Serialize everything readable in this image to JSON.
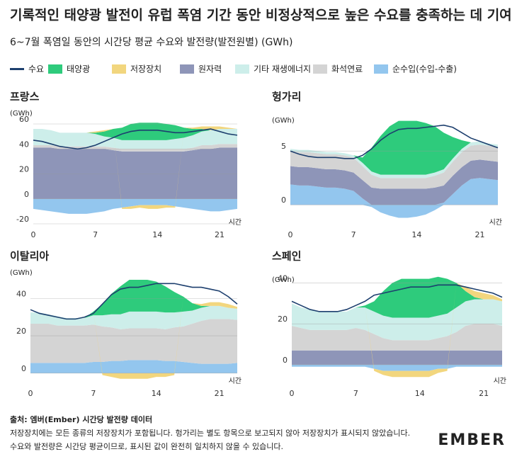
{
  "title": "기록적인 태양광 발전이 유럽 폭염 기간 동안 비정상적으로 높은 수요를 충족하는 데 기여",
  "subtitle": "6~7월 폭염일 동안의 시간당 평균 수요와 발전량(발전원별) (GWh)",
  "footer": {
    "source": "출처: 엠버(Ember) 시간당 발전량 데이터",
    "notes": [
      "저장장치에는 모든 종류의 저장장치가 포함됩니다. 헝가리는 별도 항목으로 보고되지 않아 저장장치가 표시되지 않았습니다.",
      "수요와 발전량은 시간당 평균이므로, 표시된 값이 완전히 일치하지 않을 수 있습니다."
    ]
  },
  "logo": "EMBER",
  "chart_data": [
    {
      "type": "area",
      "title": "프랑스",
      "y_label": "(GWh)",
      "x_label": "시간",
      "x": [
        0,
        1,
        2,
        3,
        4,
        5,
        6,
        7,
        8,
        9,
        10,
        11,
        12,
        13,
        14,
        15,
        16,
        17,
        18,
        19,
        20,
        21,
        22,
        23
      ],
      "xlim": [
        0,
        23
      ],
      "xticks": [
        0,
        7,
        14,
        21
      ],
      "ylim": [
        -20,
        60
      ],
      "yticks": [
        -20,
        0,
        20,
        40,
        60
      ],
      "grid": true,
      "series": [
        {
          "name": "수요",
          "color": "#1d3f6e",
          "values": [
            47,
            46,
            44,
            42,
            41,
            40,
            41,
            43,
            46,
            49,
            52,
            54,
            55,
            55,
            55,
            54,
            53,
            53,
            54,
            55,
            56,
            54,
            52,
            51
          ]
        },
        {
          "name": "태양광",
          "color": "#2ecb7c",
          "values": [
            0,
            0,
            0,
            0,
            0,
            0,
            0,
            1,
            4,
            7,
            10,
            13,
            14,
            14,
            14,
            13,
            11,
            8,
            5,
            2,
            0,
            0,
            0,
            0
          ]
        },
        {
          "name": "저장장치",
          "color": "#f2d67e",
          "values": [
            0,
            0,
            0,
            0,
            0,
            0,
            0,
            1,
            1,
            0,
            -1,
            -2,
            -2,
            -3,
            -3,
            -2,
            -1,
            0,
            1,
            2,
            3,
            2,
            1,
            0
          ]
        },
        {
          "name": "원자력",
          "color": "#8e95b8",
          "values": [
            41,
            41,
            41,
            40,
            40,
            40,
            40,
            40,
            40,
            39,
            38,
            38,
            38,
            38,
            38,
            38,
            38,
            38,
            39,
            40,
            40,
            41,
            41,
            41
          ]
        },
        {
          "name": "기타 재생에너지",
          "color": "#cdeeea",
          "values": [
            13,
            13,
            12,
            11,
            11,
            11,
            11,
            10,
            8,
            8,
            7,
            7,
            7,
            7,
            7,
            7,
            8,
            9,
            10,
            11,
            12,
            12,
            12,
            12
          ]
        },
        {
          "name": "화석연료",
          "color": "#d4d4d4",
          "values": [
            2,
            2,
            2,
            2,
            2,
            2,
            2,
            2,
            2,
            2,
            2,
            2,
            2,
            2,
            2,
            2,
            2,
            2,
            2,
            3,
            3,
            3,
            3,
            3
          ]
        },
        {
          "name": "순수입(수입-수출)",
          "color": "#93c6ee",
          "values": [
            -8,
            -9,
            -10,
            -11,
            -12,
            -12,
            -12,
            -11,
            -10,
            -8,
            -7,
            -6,
            -5,
            -5,
            -5,
            -5,
            -6,
            -7,
            -8,
            -9,
            -10,
            -10,
            -9,
            -8
          ]
        }
      ]
    },
    {
      "type": "area",
      "title": "헝가리",
      "y_label": "(GWh)",
      "x_label": "시간",
      "x": [
        0,
        1,
        2,
        3,
        4,
        5,
        6,
        7,
        8,
        9,
        10,
        11,
        12,
        13,
        14,
        15,
        16,
        17,
        18,
        19,
        20,
        21,
        22,
        23
      ],
      "xlim": [
        0,
        23
      ],
      "xticks": [
        0,
        7,
        14,
        21
      ],
      "ylim": [
        -1.5,
        8.5
      ],
      "yticks": [
        0,
        5
      ],
      "grid": true,
      "series": [
        {
          "name": "수요",
          "color": "#1d3f6e",
          "values": [
            5,
            4.7,
            4.5,
            4.4,
            4.4,
            4.4,
            4.3,
            4.3,
            4.6,
            5.2,
            6,
            6.6,
            7,
            7.1,
            7.1,
            7.2,
            7.3,
            7.4,
            7.2,
            6.7,
            6.2,
            5.9,
            5.6,
            5.3
          ]
        },
        {
          "name": "태양광",
          "color": "#2ecb7c",
          "values": [
            0,
            0,
            0,
            0,
            0,
            0,
            0,
            0,
            0.5,
            2.2,
            3.6,
            4.5,
            5,
            5,
            5,
            4.8,
            4.3,
            3.4,
            2,
            0.8,
            0,
            0,
            0,
            0
          ]
        },
        {
          "name": "저장장치",
          "color": "#f2d67e",
          "values": [
            null,
            null,
            null,
            null,
            null,
            null,
            null,
            null,
            null,
            null,
            null,
            null,
            null,
            null,
            null,
            null,
            null,
            null,
            null,
            null,
            null,
            null,
            null,
            null
          ]
        },
        {
          "name": "원자력",
          "color": "#8e95b8",
          "values": [
            1.7,
            1.7,
            1.7,
            1.7,
            1.7,
            1.7,
            1.7,
            1.7,
            1.7,
            1.6,
            1.5,
            1.5,
            1.5,
            1.5,
            1.5,
            1.5,
            1.6,
            1.6,
            1.7,
            1.7,
            1.7,
            1.7,
            1.7,
            1.7
          ]
        },
        {
          "name": "기타 재생에너지",
          "color": "#cdeeea",
          "values": [
            0.2,
            0.2,
            0.2,
            0.2,
            0.2,
            0.2,
            0.2,
            0.2,
            0.3,
            0.3,
            0.3,
            0.3,
            0.3,
            0.3,
            0.3,
            0.3,
            0.3,
            0.3,
            0.3,
            0.3,
            0.3,
            0.3,
            0.2,
            0.2
          ]
        },
        {
          "name": "화석연료",
          "color": "#d4d4d4",
          "values": [
            1.4,
            1.4,
            1.4,
            1.4,
            1.4,
            1.4,
            1.4,
            1.4,
            1.3,
            1.2,
            1,
            1,
            1,
            1,
            1,
            1,
            1.1,
            1.2,
            1.3,
            1.4,
            1.4,
            1.4,
            1.4,
            1.4
          ]
        },
        {
          "name": "순수입(수입-수출)",
          "color": "#93c6ee",
          "values": [
            1.9,
            1.8,
            1.8,
            1.7,
            1.6,
            1.6,
            1.5,
            1.3,
            0.6,
            -0.2,
            -0.7,
            -1,
            -1.2,
            -1.2,
            -1.1,
            -0.9,
            -0.5,
            0.2,
            1,
            1.8,
            2.4,
            2.5,
            2.4,
            2.3
          ]
        }
      ]
    },
    {
      "type": "area",
      "title": "이탈리아",
      "y_label": "(GWh)",
      "x_label": "시간",
      "x": [
        0,
        1,
        2,
        3,
        4,
        5,
        6,
        7,
        8,
        9,
        10,
        11,
        12,
        13,
        14,
        15,
        16,
        17,
        18,
        19,
        20,
        21,
        22,
        23
      ],
      "xlim": [
        0,
        23
      ],
      "xticks": [
        0,
        7,
        14,
        21
      ],
      "ylim": [
        -5,
        50
      ],
      "yticks": [
        0,
        20,
        40
      ],
      "grid": true,
      "series": [
        {
          "name": "수요",
          "color": "#1d3f6e",
          "values": [
            34,
            32,
            31,
            30,
            29,
            29,
            30,
            32,
            37,
            42,
            45,
            46,
            46,
            47,
            48,
            48,
            48,
            47,
            46,
            46,
            45,
            44,
            41,
            37
          ]
        },
        {
          "name": "태양광",
          "color": "#2ecb7c",
          "values": [
            0,
            0,
            0,
            0,
            0,
            0,
            0,
            2,
            6,
            11,
            15,
            17,
            17,
            17,
            16,
            14,
            11,
            8,
            4,
            1,
            0,
            0,
            0,
            0
          ]
        },
        {
          "name": "저장장치",
          "color": "#f2d67e",
          "values": [
            0,
            0,
            0,
            0,
            0,
            0,
            0,
            0,
            -1,
            -2,
            -3,
            -3,
            -3,
            -3,
            -2,
            -2,
            -1,
            0,
            0,
            1,
            2,
            2,
            2,
            1
          ]
        },
        {
          "name": "원자력",
          "color": "#8e95b8",
          "values": [
            0,
            0,
            0,
            0,
            0,
            0,
            0,
            0,
            0,
            0,
            0,
            0,
            0,
            0,
            0,
            0,
            0,
            0,
            0,
            0,
            0,
            0,
            0,
            0
          ]
        },
        {
          "name": "기타 재생에너지",
          "color": "#cdeeea",
          "values": [
            6,
            6,
            5,
            5,
            4,
            4,
            4,
            5,
            6,
            7,
            8,
            9,
            9,
            9,
            9,
            9,
            8,
            8,
            7,
            7,
            7,
            7,
            6,
            6
          ]
        },
        {
          "name": "화석연료",
          "color": "#d4d4d4",
          "values": [
            21,
            21,
            21,
            20,
            20,
            20,
            20,
            20,
            19,
            18,
            17,
            17,
            17,
            17,
            17,
            17,
            18,
            19,
            21,
            23,
            24,
            24,
            24,
            23
          ]
        },
        {
          "name": "순수입(수입-수출)",
          "color": "#93c6ee",
          "values": [
            5.5,
            5.5,
            5.5,
            5.5,
            5.5,
            5.5,
            5.5,
            6,
            6,
            6.5,
            6.5,
            7,
            7,
            7,
            7,
            6.5,
            6.5,
            6,
            5.5,
            5,
            5,
            5,
            5,
            5.5
          ]
        }
      ]
    },
    {
      "type": "area",
      "title": "스페인",
      "y_label": "(GWh)",
      "x_label": "시간",
      "x": [
        0,
        1,
        2,
        3,
        4,
        5,
        6,
        7,
        8,
        9,
        10,
        11,
        12,
        13,
        14,
        15,
        16,
        17,
        18,
        19,
        20,
        21,
        22,
        23
      ],
      "xlim": [
        0,
        23
      ],
      "xticks": [
        0,
        7,
        14,
        21
      ],
      "ylim": [
        -8,
        45
      ],
      "yticks": [
        0,
        20,
        40
      ],
      "grid": true,
      "series": [
        {
          "name": "수요",
          "color": "#1d3f6e",
          "values": [
            31,
            29,
            27,
            26,
            26,
            26,
            27,
            29,
            31,
            34,
            35,
            36,
            37,
            38,
            38,
            38,
            39,
            39,
            39,
            38,
            37,
            36,
            35,
            33
          ]
        },
        {
          "name": "태양광",
          "color": "#2ecb7c",
          "values": [
            0,
            0,
            0,
            0,
            0,
            0,
            0,
            0,
            1,
            5,
            12,
            17,
            19,
            19,
            19,
            19,
            19,
            17,
            12,
            5,
            1,
            0,
            0,
            0
          ]
        },
        {
          "name": "저장장치",
          "color": "#f2d67e",
          "values": [
            0,
            0,
            0,
            0,
            0,
            0,
            0,
            0,
            0,
            -1,
            -2,
            -3,
            -3,
            -3,
            -3,
            -3,
            -2,
            -1,
            0,
            2,
            3,
            3,
            2,
            1
          ]
        },
        {
          "name": "원자력",
          "color": "#8e95b8",
          "values": [
            7,
            7,
            7,
            7,
            7,
            7,
            7,
            7,
            7,
            7,
            7,
            7,
            7,
            7,
            7,
            7,
            7,
            7,
            7,
            7,
            7,
            7,
            7,
            7
          ]
        },
        {
          "name": "기타 재생에너지",
          "color": "#cdeeea",
          "values": [
            11,
            10,
            10,
            9,
            9,
            9,
            9,
            10,
            11,
            11,
            11,
            11,
            11,
            11,
            11,
            11,
            11,
            11,
            12,
            12,
            12,
            12,
            12,
            12
          ]
        },
        {
          "name": "화석연료",
          "color": "#d4d4d4",
          "values": [
            12,
            11,
            10,
            10,
            10,
            10,
            10,
            11,
            10,
            8,
            6,
            5,
            5,
            5,
            5,
            5,
            6,
            7,
            9,
            12,
            13,
            13,
            13,
            12
          ]
        },
        {
          "name": "순수입(수입-수출)",
          "color": "#93c6ee",
          "values": [
            -1,
            -1,
            -1,
            -1,
            -1,
            -1,
            -1,
            -1,
            -1,
            -2,
            -3,
            -3,
            -3,
            -3,
            -3,
            -3,
            -2,
            -2,
            -1,
            -1,
            -1,
            -1,
            -1,
            -1
          ]
        }
      ]
    }
  ]
}
